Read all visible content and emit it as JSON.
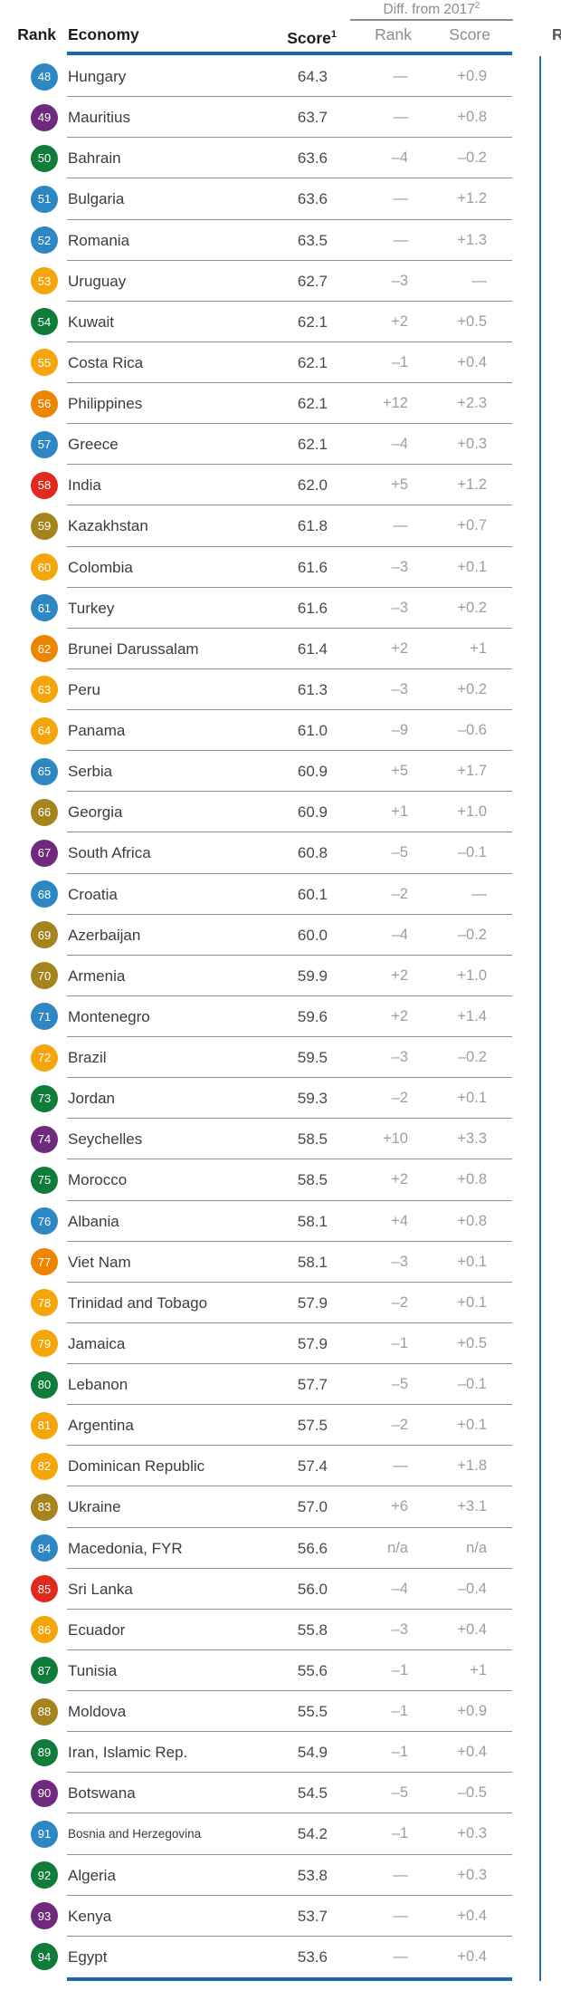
{
  "table": {
    "header": {
      "rank": "Rank",
      "economy": "Economy",
      "score": "Score",
      "score_sup": "1",
      "diff_group": "Diff. from 2017",
      "diff_group_sup": "2",
      "diff_rank": "Rank",
      "diff_score": "Score"
    },
    "adjacent_partial_header": "Ra",
    "colors": {
      "rule_blue": "#1966ad",
      "vertical_rule_blue": "#2e6da8",
      "separator_gray": "#8f8f8f",
      "header_text": "#1d1d1b",
      "subheader_gray": "#8c8c8c",
      "economy_text": "#3c3c3c",
      "score_text": "#4a4a4a",
      "diff_text": "#9d9d9d",
      "regions": {
        "europe_north_america": "#2d87c3",
        "sub_saharan_africa": "#702a7d",
        "middle_east_north_africa": "#0f7c3a",
        "latin_america_caribbean": "#f4a50a",
        "east_asia_pacific": "#ee8500",
        "south_asia": "#e02a1d",
        "eurasia": "#a5841e"
      }
    },
    "rows": [
      {
        "rank": "48",
        "economy": "Hungary",
        "score": "64.3",
        "rank_diff": "—",
        "score_diff": "+0.9",
        "region": "europe_north_america"
      },
      {
        "rank": "49",
        "economy": "Mauritius",
        "score": "63.7",
        "rank_diff": "—",
        "score_diff": "+0.8",
        "region": "sub_saharan_africa"
      },
      {
        "rank": "50",
        "economy": "Bahrain",
        "score": "63.6",
        "rank_diff": "–4",
        "score_diff": "–0.2",
        "region": "middle_east_north_africa"
      },
      {
        "rank": "51",
        "economy": "Bulgaria",
        "score": "63.6",
        "rank_diff": "—",
        "score_diff": "+1.2",
        "region": "europe_north_america"
      },
      {
        "rank": "52",
        "economy": "Romania",
        "score": "63.5",
        "rank_diff": "—",
        "score_diff": "+1.3",
        "region": "europe_north_america"
      },
      {
        "rank": "53",
        "economy": "Uruguay",
        "score": "62.7",
        "rank_diff": "–3",
        "score_diff": "—",
        "region": "latin_america_caribbean"
      },
      {
        "rank": "54",
        "economy": "Kuwait",
        "score": "62.1",
        "rank_diff": "+2",
        "score_diff": "+0.5",
        "region": "middle_east_north_africa"
      },
      {
        "rank": "55",
        "economy": "Costa Rica",
        "score": "62.1",
        "rank_diff": "–1",
        "score_diff": "+0.4",
        "region": "latin_america_caribbean"
      },
      {
        "rank": "56",
        "economy": "Philippines",
        "score": "62.1",
        "rank_diff": "+12",
        "score_diff": "+2.3",
        "region": "east_asia_pacific"
      },
      {
        "rank": "57",
        "economy": "Greece",
        "score": "62.1",
        "rank_diff": "–4",
        "score_diff": "+0.3",
        "region": "europe_north_america"
      },
      {
        "rank": "58",
        "economy": "India",
        "score": "62.0",
        "rank_diff": "+5",
        "score_diff": "+1.2",
        "region": "south_asia"
      },
      {
        "rank": "59",
        "economy": "Kazakhstan",
        "score": "61.8",
        "rank_diff": "—",
        "score_diff": "+0.7",
        "region": "eurasia"
      },
      {
        "rank": "60",
        "economy": "Colombia",
        "score": "61.6",
        "rank_diff": "–3",
        "score_diff": "+0.1",
        "region": "latin_america_caribbean"
      },
      {
        "rank": "61",
        "economy": "Turkey",
        "score": "61.6",
        "rank_diff": "–3",
        "score_diff": "+0.2",
        "region": "europe_north_america"
      },
      {
        "rank": "62",
        "economy": "Brunei Darussalam",
        "score": "61.4",
        "rank_diff": "+2",
        "score_diff": "+1",
        "region": "east_asia_pacific"
      },
      {
        "rank": "63",
        "economy": "Peru",
        "score": "61.3",
        "rank_diff": "–3",
        "score_diff": "+0.2",
        "region": "latin_america_caribbean"
      },
      {
        "rank": "64",
        "economy": "Panama",
        "score": "61.0",
        "rank_diff": "–9",
        "score_diff": "–0.6",
        "region": "latin_america_caribbean"
      },
      {
        "rank": "65",
        "economy": "Serbia",
        "score": "60.9",
        "rank_diff": "+5",
        "score_diff": "+1.7",
        "region": "europe_north_america"
      },
      {
        "rank": "66",
        "economy": "Georgia",
        "score": "60.9",
        "rank_diff": "+1",
        "score_diff": "+1.0",
        "region": "eurasia"
      },
      {
        "rank": "67",
        "economy": "South Africa",
        "score": "60.8",
        "rank_diff": "–5",
        "score_diff": "–0.1",
        "region": "sub_saharan_africa"
      },
      {
        "rank": "68",
        "economy": "Croatia",
        "score": "60.1",
        "rank_diff": "–2",
        "score_diff": "—",
        "region": "europe_north_america"
      },
      {
        "rank": "69",
        "economy": "Azerbaijan",
        "score": "60.0",
        "rank_diff": "–4",
        "score_diff": "–0.2",
        "region": "eurasia"
      },
      {
        "rank": "70",
        "economy": "Armenia",
        "score": "59.9",
        "rank_diff": "+2",
        "score_diff": "+1.0",
        "region": "eurasia"
      },
      {
        "rank": "71",
        "economy": "Montenegro",
        "score": "59.6",
        "rank_diff": "+2",
        "score_diff": "+1.4",
        "region": "europe_north_america"
      },
      {
        "rank": "72",
        "economy": "Brazil",
        "score": "59.5",
        "rank_diff": "–3",
        "score_diff": "–0.2",
        "region": "latin_america_caribbean"
      },
      {
        "rank": "73",
        "economy": "Jordan",
        "score": "59.3",
        "rank_diff": "–2",
        "score_diff": "+0.1",
        "region": "middle_east_north_africa"
      },
      {
        "rank": "74",
        "economy": "Seychelles",
        "score": "58.5",
        "rank_diff": "+10",
        "score_diff": "+3.3",
        "region": "sub_saharan_africa"
      },
      {
        "rank": "75",
        "economy": "Morocco",
        "score": "58.5",
        "rank_diff": "+2",
        "score_diff": "+0.8",
        "region": "middle_east_north_africa"
      },
      {
        "rank": "76",
        "economy": "Albania",
        "score": "58.1",
        "rank_diff": "+4",
        "score_diff": "+0.8",
        "region": "europe_north_america"
      },
      {
        "rank": "77",
        "economy": "Viet Nam",
        "score": "58.1",
        "rank_diff": "–3",
        "score_diff": "+0.1",
        "region": "east_asia_pacific"
      },
      {
        "rank": "78",
        "economy": "Trinidad and Tobago",
        "score": "57.9",
        "rank_diff": "–2",
        "score_diff": "+0.1",
        "region": "latin_america_caribbean"
      },
      {
        "rank": "79",
        "economy": "Jamaica",
        "score": "57.9",
        "rank_diff": "–1",
        "score_diff": "+0.5",
        "region": "latin_america_caribbean"
      },
      {
        "rank": "80",
        "economy": "Lebanon",
        "score": "57.7",
        "rank_diff": "–5",
        "score_diff": "–0.1",
        "region": "middle_east_north_africa"
      },
      {
        "rank": "81",
        "economy": "Argentina",
        "score": "57.5",
        "rank_diff": "–2",
        "score_diff": "+0.1",
        "region": "latin_america_caribbean"
      },
      {
        "rank": "82",
        "economy": "Dominican Republic",
        "score": "57.4",
        "rank_diff": "—",
        "score_diff": "+1.8",
        "region": "latin_america_caribbean"
      },
      {
        "rank": "83",
        "economy": "Ukraine",
        "score": "57.0",
        "rank_diff": "+6",
        "score_diff": "+3.1",
        "region": "eurasia"
      },
      {
        "rank": "84",
        "economy": "Macedonia, FYR",
        "score": "56.6",
        "rank_diff": "n/a",
        "score_diff": "n/a",
        "region": "europe_north_america"
      },
      {
        "rank": "85",
        "economy": "Sri Lanka",
        "score": "56.0",
        "rank_diff": "–4",
        "score_diff": "–0.4",
        "region": "south_asia"
      },
      {
        "rank": "86",
        "economy": "Ecuador",
        "score": "55.8",
        "rank_diff": "–3",
        "score_diff": "+0.4",
        "region": "latin_america_caribbean"
      },
      {
        "rank": "87",
        "economy": "Tunisia",
        "score": "55.6",
        "rank_diff": "–1",
        "score_diff": "+1",
        "region": "middle_east_north_africa"
      },
      {
        "rank": "88",
        "economy": "Moldova",
        "score": "55.5",
        "rank_diff": "–1",
        "score_diff": "+0.9",
        "region": "eurasia"
      },
      {
        "rank": "89",
        "economy": "Iran, Islamic Rep.",
        "score": "54.9",
        "rank_diff": "–1",
        "score_diff": "+0.4",
        "region": "middle_east_north_africa"
      },
      {
        "rank": "90",
        "economy": "Botswana",
        "score": "54.5",
        "rank_diff": "–5",
        "score_diff": "–0.5",
        "region": "sub_saharan_africa"
      },
      {
        "rank": "91",
        "economy": "Bosnia and Herzegovina",
        "score": "54.2",
        "rank_diff": "–1",
        "score_diff": "+0.3",
        "region": "europe_north_america",
        "small": true
      },
      {
        "rank": "92",
        "economy": "Algeria",
        "score": "53.8",
        "rank_diff": "—",
        "score_diff": "+0.3",
        "region": "middle_east_north_africa"
      },
      {
        "rank": "93",
        "economy": "Kenya",
        "score": "53.7",
        "rank_diff": "—",
        "score_diff": "+0.4",
        "region": "sub_saharan_africa"
      },
      {
        "rank": "94",
        "economy": "Egypt",
        "score": "53.6",
        "rank_diff": "—",
        "score_diff": "+0.4",
        "region": "middle_east_north_africa"
      }
    ]
  }
}
